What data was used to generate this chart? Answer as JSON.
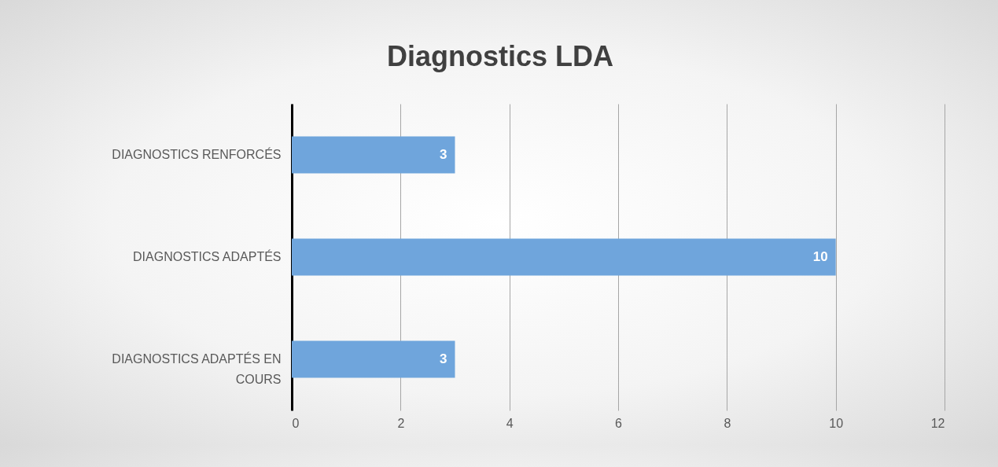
{
  "chart_data": {
    "type": "bar",
    "title": "Diagnostics LDA",
    "orientation": "horizontal",
    "categories": [
      "DIAGNOSTICS RENFORCÉS",
      "DIAGNOSTICS ADAPTÉS",
      "DIAGNOSTICS ADAPTÉS EN COURS"
    ],
    "values": [
      3,
      10,
      3
    ],
    "color": "#6fa5dc",
    "xlim": [
      0,
      12
    ],
    "xticks": [
      0,
      2,
      4,
      6,
      8,
      10,
      12
    ],
    "grid": "x",
    "data_labels": true
  }
}
